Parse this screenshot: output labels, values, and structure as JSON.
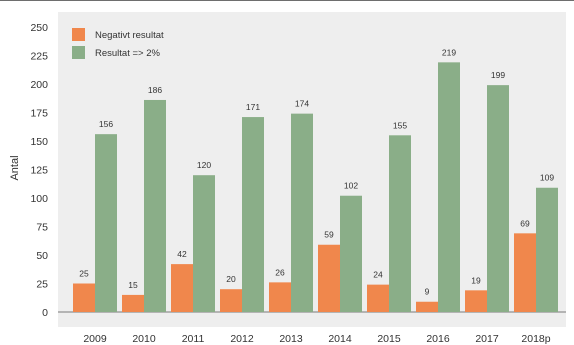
{
  "chart_data": {
    "type": "bar",
    "categories": [
      "2009",
      "2010",
      "2011",
      "2012",
      "2013",
      "2014",
      "2015",
      "2016",
      "2017",
      "2018p"
    ],
    "series": [
      {
        "name": "Negativt resultat",
        "color": "#F0874C",
        "values": [
          25,
          15,
          42,
          20,
          26,
          59,
          24,
          9,
          19,
          69
        ]
      },
      {
        "name": "Resultat => 2%",
        "color": "#8AAE88",
        "values": [
          156,
          186,
          120,
          171,
          174,
          102,
          155,
          219,
          199,
          109
        ]
      }
    ],
    "title": "",
    "xlabel": "",
    "ylabel": "Antal",
    "ylim": [
      0,
      250
    ],
    "yticks": [
      0,
      25,
      50,
      75,
      100,
      125,
      150,
      175,
      200,
      225,
      250
    ],
    "grid": false,
    "legend": "top-left",
    "plot_background": "#EEEEEE"
  }
}
